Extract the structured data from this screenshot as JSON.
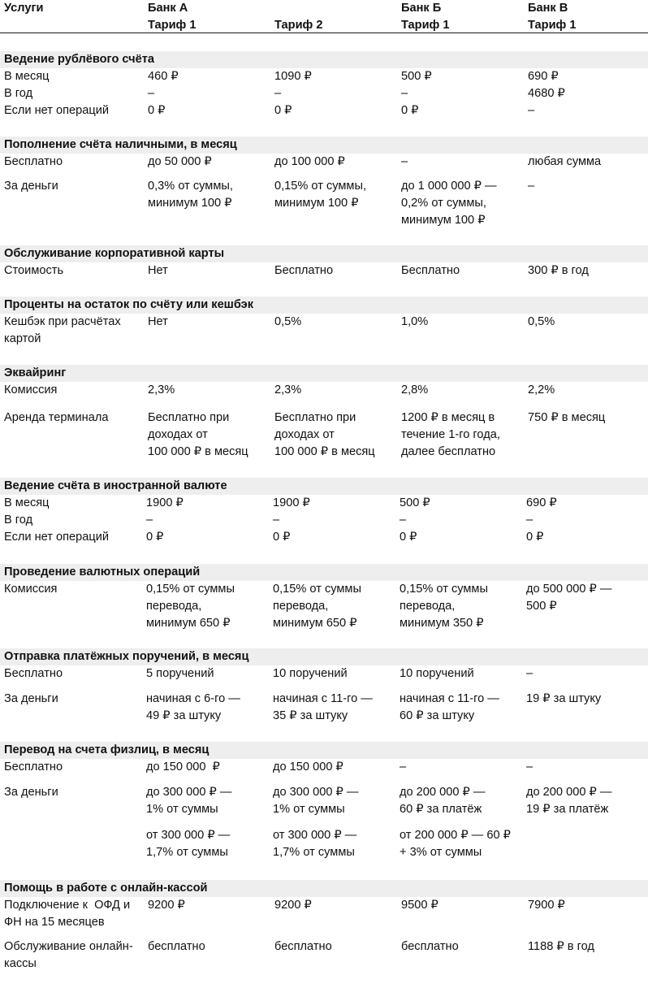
{
  "header": {
    "col0": "Услуги",
    "col1": "Банк А\nТариф 1",
    "col2": "\nТариф 2",
    "col3": "Банк Б\nТариф 1",
    "col4": "Банк В\nТариф 1"
  },
  "sections": [
    {
      "title": "Ведение рублёвого счёта",
      "rows": [
        {
          "label": "В месяц\nВ год\nЕсли нет операций",
          "a1": "460 ₽\n–\n0 ₽",
          "a2": "1090 ₽\n–\n0 ₽",
          "b1": "500 ₽\n–\n0 ₽",
          "v1": "690 ₽\n4680 ₽\n–"
        }
      ]
    },
    {
      "title": "Пополнение счёта наличными, в месяц",
      "rows": [
        {
          "label": "Бесплатно",
          "a1": "до 50 000 ₽",
          "a2": "до 100 000 ₽",
          "b1": "–",
          "v1": "любая сумма"
        },
        {
          "label": "За деньги",
          "a1": "0,3% от суммы,\nминимум 100 ₽",
          "a2": "0,15% от суммы,\nминимум 100 ₽",
          "b1": "до 1 000 000 ₽ —\n0,2% от суммы,\nминимум 100 ₽",
          "v1": "–"
        }
      ]
    },
    {
      "title": "Обслуживание корпоративной карты",
      "rows": [
        {
          "label": "Стоимость",
          "a1": "Нет",
          "a2": "Бесплатно",
          "b1": "Бесплатно",
          "v1": "300 ₽ в год"
        }
      ]
    },
    {
      "title": "Проценты на остаток по счёту или кешбэк",
      "rows": [
        {
          "label": "Кешбэк при расчётах\nкартой",
          "a1": "Нет",
          "a2": "0,5%",
          "b1": "1,0%",
          "v1": "0,5%"
        }
      ]
    },
    {
      "title": "Эквайринг",
      "rows": [
        {
          "label": "Комиссия",
          "a1": "2,3%",
          "a2": "2,3%",
          "b1": "2,8%",
          "v1": "2,2%"
        },
        {
          "label": "Аренда терминала",
          "a1": "Бесплатно при\nдоходах от\n100 000 ₽ в месяц",
          "a2": "Бесплатно при\nдоходах от\n100 000 ₽ в месяц",
          "b1": "1200 ₽ в месяц в\nтечение 1-го года,\nдалее бесплатно",
          "v1": "750 ₽ в месяц"
        }
      ]
    },
    {
      "title": "Ведение счёта в иностранной валюте",
      "rows": [
        {
          "label": "В месяц\nВ год\nЕсли нет операций",
          "a1": "1900 ₽\n–\n0 ₽",
          "a2": "1900 ₽\n–\n0 ₽",
          "b1": "500 ₽\n–\n0 ₽",
          "v1": "690 ₽\n–\n0 ₽"
        }
      ]
    },
    {
      "title": "Проведение валютных операций",
      "rows": [
        {
          "label": "Комиссия",
          "a1": "0,15% от суммы\nперевода,\nминимум 650 ₽",
          "a2": "0,15% от суммы\nперевода,\nминимум 650 ₽",
          "b1": "0,15% от суммы\nперевода,\nминимум 350 ₽",
          "v1": "до 500 000 ₽ —\n500 ₽"
        }
      ]
    },
    {
      "title": "Отправка платёжных поручений, в месяц",
      "rows": [
        {
          "label": "Бесплатно",
          "a1": "5 поручений",
          "a2": "10 поручений",
          "b1": "10 поручений",
          "v1": "–"
        },
        {
          "label": "За деньги",
          "a1": "начиная с 6-го —\n49 ₽ за штуку",
          "a2": "начиная с 11-го —\n35 ₽ за штуку",
          "b1": "начиная с 11-го —\n60 ₽ за штуку",
          "v1": "19 ₽ за штуку"
        }
      ]
    },
    {
      "title": "Перевод на счета физлиц, в месяц",
      "rows": [
        {
          "label": "Бесплатно",
          "a1": "до 150 000  ₽",
          "a2": "до 150 000 ₽",
          "b1": "–",
          "v1": "–"
        },
        {
          "label": "За деньги",
          "a1": "до 300 000 ₽ —\n1% от суммы",
          "a2": "до 300 000 ₽ —\n1% от суммы",
          "b1": "до 200 000 ₽ —\n60 ₽ за платёж",
          "v1": "до 200 000 ₽ —\n19 ₽ за платёж"
        },
        {
          "label": "",
          "a1": "от 300 000 ₽ —\n1,7% от суммы",
          "a2": "от 300 000 ₽ —\n1,7% от суммы",
          "b1": "от 200 000 ₽ — 60 ₽\n+ 3% от суммы",
          "v1": ""
        }
      ]
    },
    {
      "title": "Помощь в работе с онлайн-кассой",
      "rows": [
        {
          "label": "Подключение к  ОФД и\nФН на 15 месяцев",
          "a1": "9200 ₽",
          "a2": "9200 ₽",
          "b1": "9500 ₽",
          "v1": "7900 ₽"
        },
        {
          "label": "Обслуживание онлайн-\nкассы",
          "a1": "бесплатно",
          "a2": "бесплатно",
          "b1": "бесплатно",
          "v1": "1188 ₽ в год"
        }
      ]
    }
  ]
}
